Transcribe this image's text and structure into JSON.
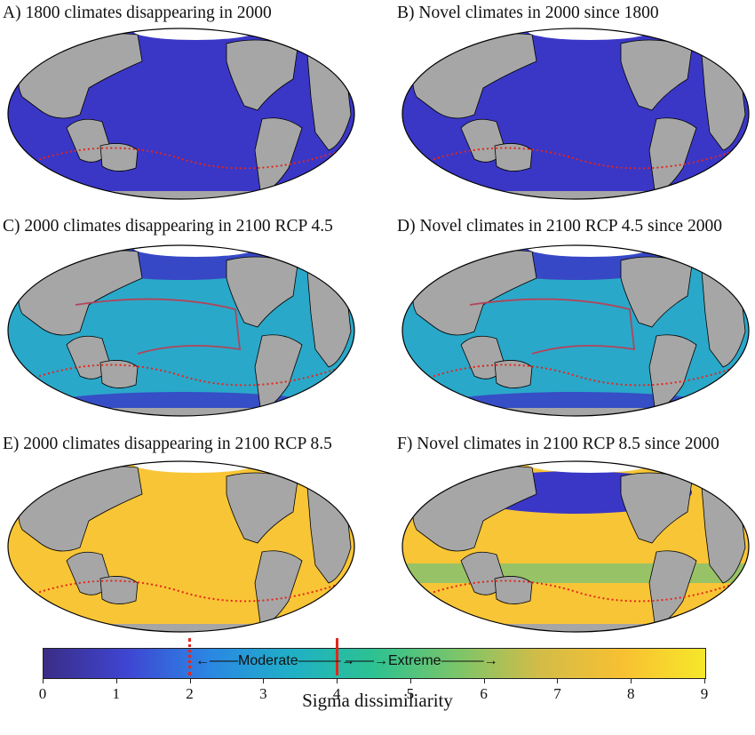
{
  "panels": [
    {
      "label": "A) 1800 climates disappearing in 2000",
      "scenario": "past-disappearing"
    },
    {
      "label": "B) Novel climates in 2000 since 1800",
      "scenario": "past-novel"
    },
    {
      "label": "C) 2000 climates disappearing in 2100 RCP 4.5",
      "scenario": "rcp45-disappearing"
    },
    {
      "label": "D) Novel climates in 2100 RCP 4.5 since 2000",
      "scenario": "rcp45-novel"
    },
    {
      "label": "E) 2000 climates disappearing in 2100 RCP 8.5",
      "scenario": "rcp85-disappearing"
    },
    {
      "label": "F) Novel climates in 2100 RCP 8.5 since 2000",
      "scenario": "rcp85-novel"
    }
  ],
  "colorbar": {
    "ticks": [
      "0",
      "1",
      "2",
      "3",
      "4",
      "5",
      "6",
      "7",
      "8",
      "9"
    ],
    "min": 0,
    "max": 9,
    "moderate_label": "Moderate",
    "extreme_label": "Extreme",
    "dotted_threshold": 2,
    "solid_threshold": 4,
    "title": "Sigma dissimiliarity",
    "colormap": [
      "#3a2d86",
      "#3f45d2",
      "#2b86e3",
      "#1fb0c7",
      "#2dc290",
      "#7bc56a",
      "#d3bc47",
      "#f8c032",
      "#f6e72a"
    ]
  },
  "colors": {
    "ocean_low": "#3a37c6",
    "ocean_mid": "#2aa8c9",
    "ocean_high": "#f8c536",
    "land": "#a6a6a6",
    "threshold": "#e3261b"
  }
}
